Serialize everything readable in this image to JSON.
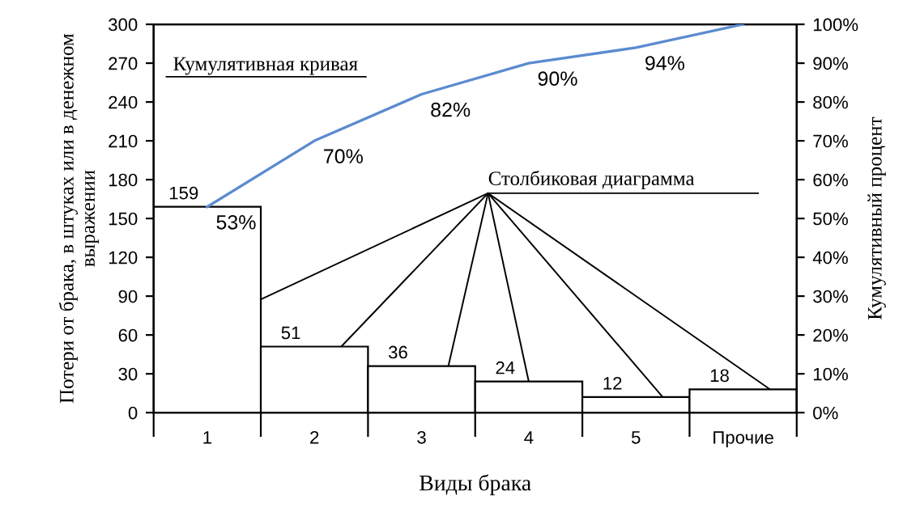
{
  "chart_data": {
    "type": "bar",
    "xlabel": "Виды брака",
    "ylabel": "Потери от брака, в штуках или в денежном выражении",
    "y2label": "Кумулятивный процент",
    "categories": [
      "1",
      "2",
      "3",
      "4",
      "5",
      "Прочие"
    ],
    "series": [
      {
        "color": "#ffffff",
        "values": [
          159,
          51,
          36,
          24,
          12,
          18
        ]
      },
      {
        "type": "line",
        "axis": "y2",
        "color": "#5b8bd0",
        "values": [
          53,
          70,
          82,
          90,
          94,
          100
        ],
        "value_labels": [
          "53%",
          "70%",
          "82%",
          "90%",
          "94%",
          null
        ]
      }
    ],
    "data_labels": true,
    "ylim": [
      0,
      300
    ],
    "yticks": [
      0,
      30,
      60,
      90,
      120,
      150,
      180,
      210,
      240,
      270,
      300
    ],
    "y2lim": [
      0,
      100
    ],
    "y2ticks": [
      {
        "value": 0,
        "label": "0%"
      },
      {
        "value": 10,
        "label": "10%"
      },
      {
        "value": 20,
        "label": "20%"
      },
      {
        "value": 30,
        "label": "30%"
      },
      {
        "value": 40,
        "label": "40%"
      },
      {
        "value": 50,
        "label": "50%"
      },
      {
        "value": 60,
        "label": "60%"
      },
      {
        "value": 70,
        "label": "70%"
      },
      {
        "value": 80,
        "label": "80%"
      },
      {
        "value": 90,
        "label": "90%"
      },
      {
        "value": 100,
        "label": "100%"
      }
    ],
    "annotations": [
      "Кумулятивная кривая",
      {
        "text": "Столбиковая диаграмма",
        "x": "4",
        "y": 24
      }
    ],
    "grid": false,
    "legend": false,
    "marker": "none"
  }
}
